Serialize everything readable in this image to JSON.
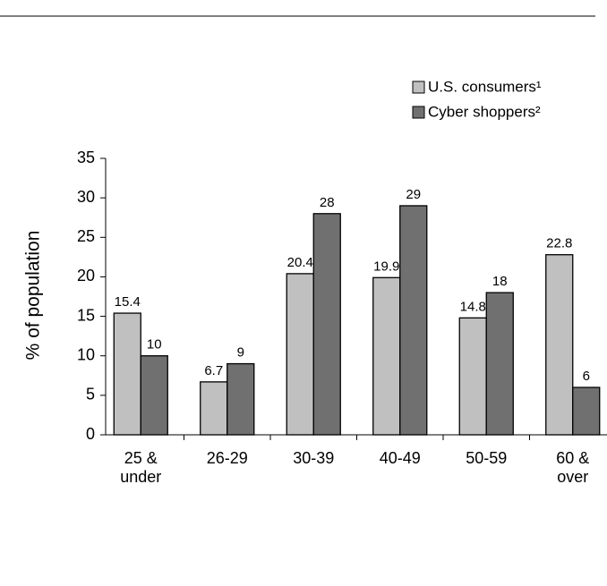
{
  "chart_data": {
    "type": "bar",
    "y_label": "% of population",
    "categories": [
      "25 & under",
      "26-29",
      "30-39",
      "40-49",
      "50-59",
      "60 & over"
    ],
    "series": [
      {
        "name": "U.S. consumers¹",
        "color": "#c0c0c0",
        "values": [
          15.4,
          6.7,
          20.4,
          19.9,
          14.8,
          22.8
        ]
      },
      {
        "name": "Cyber shoppers²",
        "color": "#707070",
        "values": [
          10,
          9,
          28,
          29,
          18,
          6
        ]
      }
    ],
    "ylim": [
      0,
      35
    ],
    "yticks": [
      0,
      5,
      10,
      15,
      20,
      25,
      30,
      35
    ],
    "grid": false,
    "legend": "top-right"
  }
}
